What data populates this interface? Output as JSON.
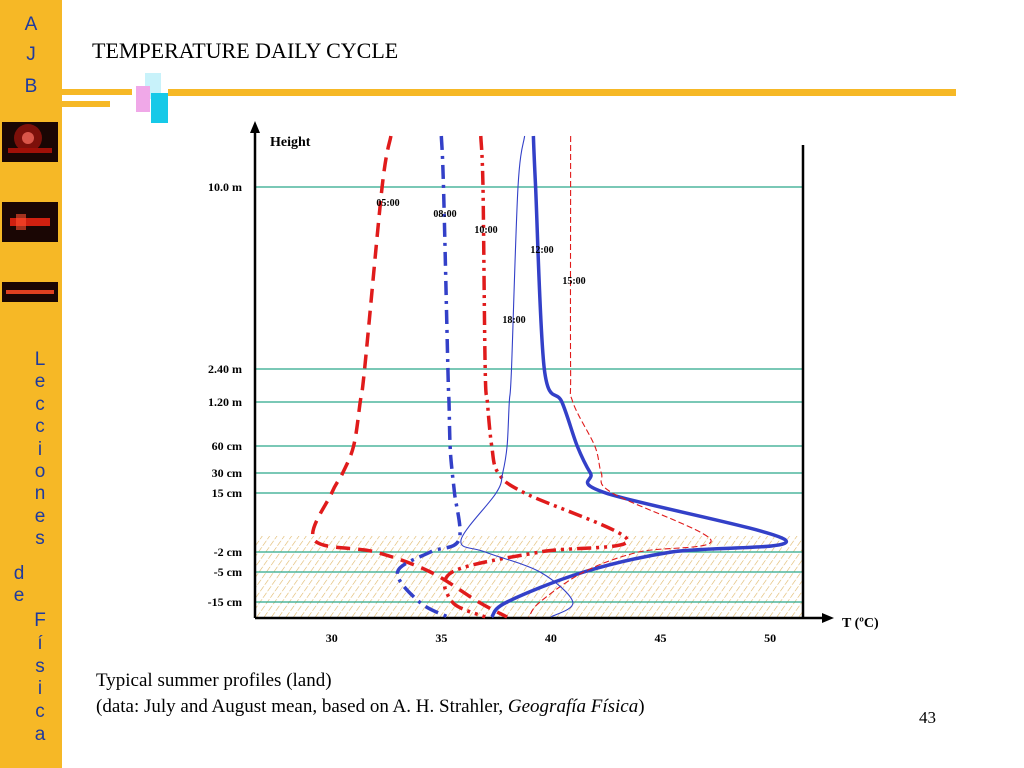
{
  "sidebar": {
    "logo_letters": [
      "A",
      "J",
      "B"
    ],
    "series_letters": [
      "L",
      "e",
      "c",
      "c",
      "i",
      "o",
      "n",
      "e",
      "s"
    ],
    "de_letters": [
      "d",
      "e"
    ],
    "fisica_letters": [
      "F",
      "í",
      "s",
      "i",
      "c",
      "a"
    ]
  },
  "slide": {
    "title": "TEMPERATURE DAILY CYCLE",
    "caption_line1": "Typical summer profiles (land)",
    "caption_line2_prefix": "(data: July and August mean, based on A. H. Strahler, ",
    "caption_line2_italic": "Geografía Física",
    "caption_line2_suffix": ")",
    "page_number": "43"
  },
  "colors": {
    "accent": "#f6b826",
    "sidebar_text": "#1f3a9e",
    "line_red": "#e01b1b",
    "line_blue": "#3340c8",
    "grid": "#2aa88a",
    "soil_hatch": "#d9a94a"
  },
  "chart_data": {
    "type": "line",
    "xlabel": "T (ºC)",
    "ylabel": "Height",
    "xlim": [
      26.5,
      51.5
    ],
    "x_ticks": [
      30,
      35,
      40,
      45,
      50
    ],
    "levels": [
      "10.0 m",
      "2.40 m",
      "1.20 m",
      "60 cm",
      "30 cm",
      "15 cm",
      "surface",
      "-2 cm",
      "-5 cm",
      "-15 cm"
    ],
    "level_labels": [
      "10.0 m",
      "2.40 m",
      "1.20 m",
      "60 cm",
      "30 cm",
      "15 cm",
      "-2 cm",
      "-5 cm",
      "-15 cm"
    ],
    "series": [
      {
        "name": "05:00",
        "style": "dash-red-thick",
        "points": [
          [
            32.7,
            "top"
          ],
          [
            32.3,
            "10.0 m"
          ],
          [
            31.5,
            "2.40 m"
          ],
          [
            31.3,
            "1.20 m"
          ],
          [
            31.0,
            "60 cm"
          ],
          [
            30.5,
            "30 cm"
          ],
          [
            30.0,
            "15 cm"
          ],
          [
            29.2,
            "surface"
          ],
          [
            32.0,
            "-2 cm"
          ],
          [
            34.5,
            "-5 cm"
          ],
          [
            36.7,
            "-15 cm"
          ],
          [
            38.0,
            "bottom"
          ]
        ]
      },
      {
        "name": "08:00",
        "style": "dashdot-blue-thick",
        "points": [
          [
            35.0,
            "top"
          ],
          [
            35.1,
            "10.0 m"
          ],
          [
            35.3,
            "2.40 m"
          ],
          [
            35.35,
            "1.20 m"
          ],
          [
            35.4,
            "60 cm"
          ],
          [
            35.5,
            "30 cm"
          ],
          [
            35.6,
            "15 cm"
          ],
          [
            35.8,
            "surface"
          ],
          [
            34.5,
            "-2 cm"
          ],
          [
            33.0,
            "-5 cm"
          ],
          [
            34.0,
            "-15 cm"
          ],
          [
            35.3,
            "bottom"
          ]
        ]
      },
      {
        "name": "10:00",
        "style": "dashdotdot-red-thick",
        "points": [
          [
            36.8,
            "top"
          ],
          [
            36.9,
            "10.0 m"
          ],
          [
            37.0,
            "2.40 m"
          ],
          [
            37.1,
            "1.20 m"
          ],
          [
            37.3,
            "60 cm"
          ],
          [
            37.6,
            "30 cm"
          ],
          [
            38.8,
            "15 cm"
          ],
          [
            43.5,
            "surface"
          ],
          [
            39.5,
            "-2 cm"
          ],
          [
            35.5,
            "-5 cm"
          ],
          [
            35.5,
            "-15 cm"
          ],
          [
            37.0,
            "bottom"
          ]
        ]
      },
      {
        "name": "12:00",
        "style": "solid-blue-thick",
        "points": [
          [
            39.2,
            "top"
          ],
          [
            39.3,
            "10.0 m"
          ],
          [
            39.7,
            "2.40 m"
          ],
          [
            40.5,
            "1.20 m"
          ],
          [
            41.2,
            "60 cm"
          ],
          [
            41.8,
            "30 cm"
          ],
          [
            42.5,
            "15 cm"
          ],
          [
            50.7,
            "surface"
          ],
          [
            45.5,
            "-2 cm"
          ],
          [
            41.5,
            "-5 cm"
          ],
          [
            38.0,
            "-15 cm"
          ],
          [
            37.3,
            "bottom"
          ]
        ]
      },
      {
        "name": "15:00",
        "style": "dash-red-thin",
        "points": [
          [
            40.9,
            "top"
          ],
          [
            40.9,
            "10.0 m"
          ],
          [
            40.9,
            "2.40 m"
          ],
          [
            41.0,
            "1.20 m"
          ],
          [
            42.0,
            "60 cm"
          ],
          [
            42.3,
            "30 cm"
          ],
          [
            42.8,
            "15 cm"
          ],
          [
            47.3,
            "surface"
          ],
          [
            44.0,
            "-2 cm"
          ],
          [
            41.5,
            "-5 cm"
          ],
          [
            39.5,
            "-15 cm"
          ],
          [
            39.0,
            "bottom"
          ]
        ]
      },
      {
        "name": "18:00",
        "style": "solid-blue-thin",
        "points": [
          [
            38.8,
            "top"
          ],
          [
            38.5,
            "10.0 m"
          ],
          [
            38.2,
            "2.40 m"
          ],
          [
            38.1,
            "1.20 m"
          ],
          [
            38.0,
            "60 cm"
          ],
          [
            37.8,
            "30 cm"
          ],
          [
            37.5,
            "15 cm"
          ],
          [
            35.9,
            "surface"
          ],
          [
            37.0,
            "-2 cm"
          ],
          [
            39.5,
            "-5 cm"
          ],
          [
            41.0,
            "-15 cm"
          ],
          [
            40.0,
            "bottom"
          ]
        ]
      }
    ],
    "legend": "labels placed along each curve",
    "grid": true,
    "soil_layer": "hatched band below ground surface"
  }
}
